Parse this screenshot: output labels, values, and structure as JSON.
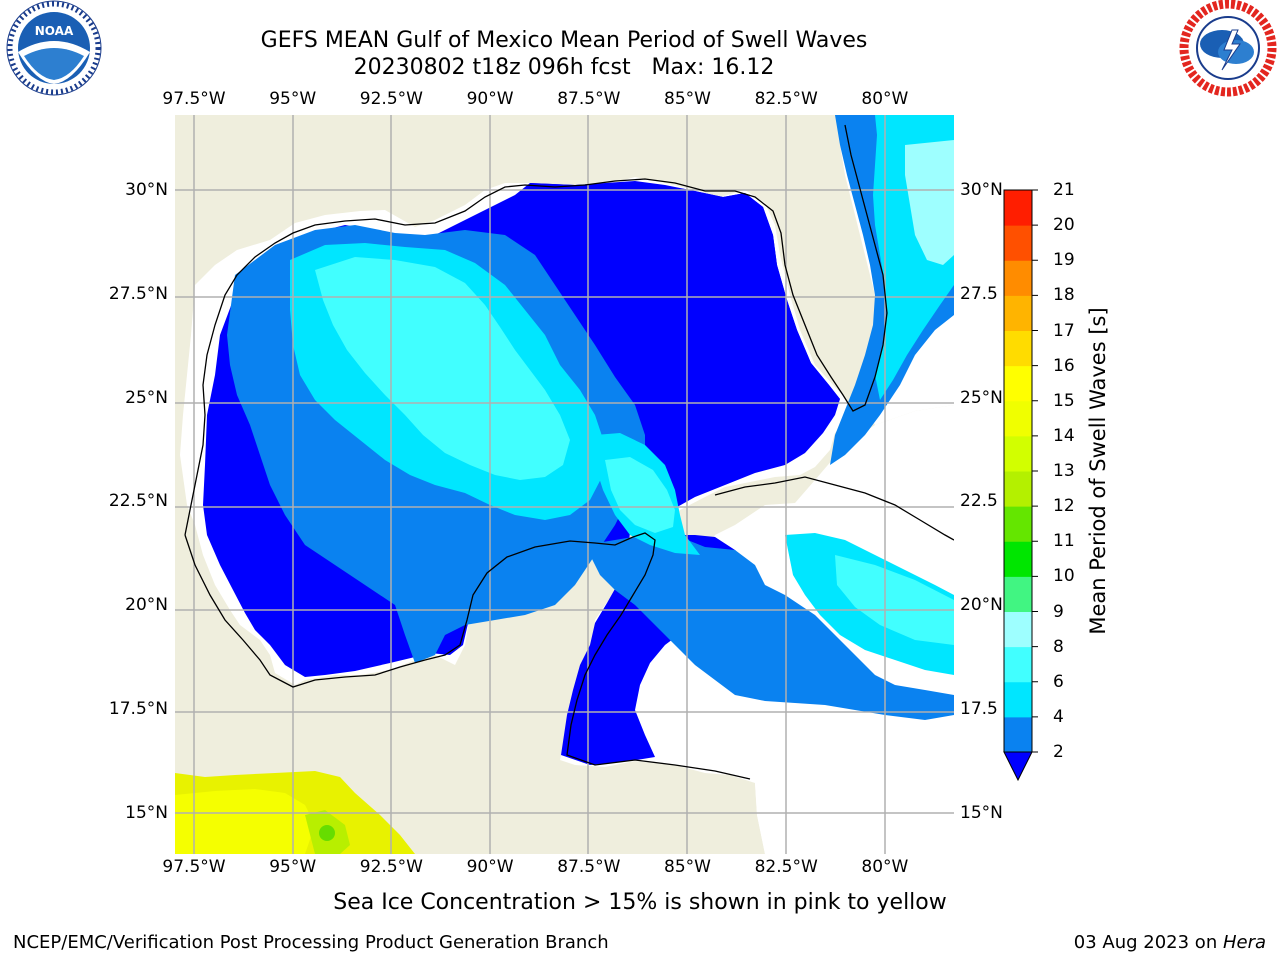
{
  "header": {
    "title_line1": "GEFS MEAN Gulf of Mexico Mean Period of Swell Waves",
    "title_line2": "20230802 t18z 096h fcst   Max: 16.12"
  },
  "logos": {
    "left": "noaa-logo",
    "right": "nws-logo"
  },
  "map": {
    "type": "filled-contour-map",
    "region": "Gulf of Mexico",
    "lon_ticks": [
      "97.5°W",
      "95°W",
      "92.5°W",
      "90°W",
      "87.5°W",
      "85°W",
      "82.5°W",
      "80°W"
    ],
    "lon_values": [
      -97.5,
      -95,
      -92.5,
      -90,
      -87.5,
      -85,
      -82.5,
      -80
    ],
    "lat_ticks_left": [
      "30°N",
      "27.5°N",
      "25°N",
      "22.5°N",
      "20°N",
      "17.5°N",
      "15°N"
    ],
    "lat_ticks_right": [
      "30°N",
      "27.5",
      "25°N",
      "22.5",
      "20°N",
      "17.5",
      "15°N"
    ],
    "lat_values": [
      30,
      27.5,
      25,
      22.5,
      20,
      17.5,
      15
    ],
    "lon_range": [
      -98,
      -78.3
    ],
    "lat_range": [
      14,
      31.8
    ],
    "grid": true,
    "colors": {
      "land": "#efeedd",
      "ocean_no_data": "#ffffff",
      "grid": "#b0b0b0"
    }
  },
  "colorbar": {
    "title": "Mean Period of Swell Waves [s]",
    "levels": [
      2,
      4,
      6,
      8,
      9,
      10,
      11,
      12,
      13,
      14,
      15,
      16,
      17,
      18,
      19,
      20,
      21
    ],
    "labels": [
      "2",
      "4",
      "6",
      "8",
      "9",
      "10",
      "11",
      "12",
      "13",
      "14",
      "15",
      "16",
      "17",
      "18",
      "19",
      "20",
      "21"
    ],
    "colors": [
      "#0a82f0",
      "#00e6ff",
      "#41ffff",
      "#9effff",
      "#41f582",
      "#00e600",
      "#64e600",
      "#b4f000",
      "#d2ff00",
      "#f0ff00",
      "#ffff00",
      "#ffdc00",
      "#ffb400",
      "#ff8c00",
      "#ff5000",
      "#ff1e00"
    ],
    "under_color": "#0000ff",
    "extend": "min",
    "location": "right"
  },
  "notes": {
    "sea_ice": "Sea Ice Concentration > 15% is shown in pink to yellow"
  },
  "footer": {
    "left": "NCEP/EMC/Verification Post Processing Product Generation Branch",
    "right_date": "03 Aug 2023 on ",
    "right_host": "Hera"
  }
}
